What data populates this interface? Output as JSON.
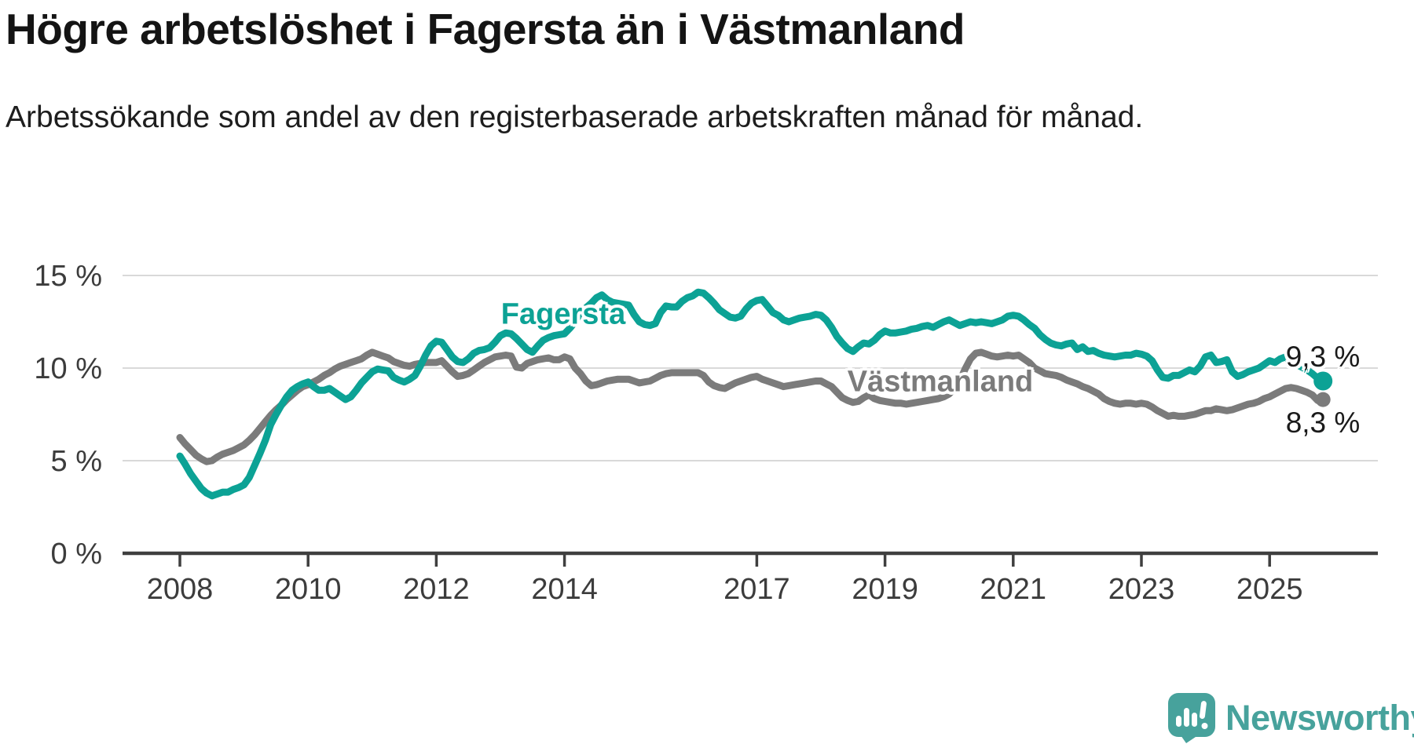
{
  "header": {
    "title": "Högre arbetslöshet i Fagersta än i Västmanland",
    "subtitle": "Arbetssökande som andel av den registerbaserade arbetskraften månad för månad."
  },
  "chart_data": {
    "type": "line",
    "title": "Högre arbetslöshet i Fagersta än i Västmanland",
    "xlabel": "",
    "ylabel": "",
    "grid": "horizontal",
    "legend": "inline-series-labels",
    "xlim": [
      2007.1,
      2026.6
    ],
    "ylim": [
      0,
      16.2
    ],
    "x_ticks": [
      2008,
      2010,
      2012,
      2014,
      2017,
      2019,
      2021,
      2023,
      2025
    ],
    "x_tick_labels": [
      "2008",
      "2010",
      "2012",
      "2014",
      "2017",
      "2019",
      "2021",
      "2023",
      "2025"
    ],
    "y_ticks": [
      0,
      5,
      10,
      15
    ],
    "y_tick_labels": [
      "0 %",
      "5 %",
      "10 %",
      "15 %"
    ],
    "series": [
      {
        "name": "Fagersta",
        "color": "#0ca295",
        "end_label": "9,3 %",
        "end_value": 9.3,
        "start": "2008-01",
        "frequency": "monthly",
        "values": [
          5.25,
          4.8,
          4.3,
          3.9,
          3.5,
          3.25,
          3.1,
          3.2,
          3.3,
          3.3,
          3.45,
          3.55,
          3.7,
          4.1,
          4.75,
          5.4,
          6.1,
          6.95,
          7.5,
          8.0,
          8.45,
          8.8,
          9.0,
          9.15,
          9.25,
          9.0,
          8.8,
          8.8,
          8.9,
          8.7,
          8.5,
          8.3,
          8.45,
          8.8,
          9.2,
          9.5,
          9.8,
          9.95,
          9.9,
          9.85,
          9.5,
          9.35,
          9.25,
          9.4,
          9.6,
          10.1,
          10.7,
          11.2,
          11.45,
          11.4,
          11.0,
          10.6,
          10.35,
          10.3,
          10.5,
          10.8,
          10.95,
          11.0,
          11.1,
          11.4,
          11.75,
          11.9,
          11.85,
          11.6,
          11.3,
          11.0,
          10.85,
          11.2,
          11.5,
          11.65,
          11.75,
          11.8,
          11.85,
          12.15,
          12.5,
          13.0,
          13.25,
          13.5,
          13.8,
          13.95,
          13.7,
          13.55,
          13.5,
          13.45,
          13.4,
          12.9,
          12.5,
          12.35,
          12.3,
          12.4,
          13.0,
          13.35,
          13.3,
          13.3,
          13.6,
          13.8,
          13.9,
          14.1,
          14.05,
          13.8,
          13.5,
          13.15,
          12.95,
          12.75,
          12.7,
          12.8,
          13.2,
          13.5,
          13.65,
          13.7,
          13.35,
          13.0,
          12.85,
          12.6,
          12.5,
          12.6,
          12.7,
          12.75,
          12.8,
          12.9,
          12.85,
          12.6,
          12.2,
          11.7,
          11.35,
          11.05,
          10.9,
          11.15,
          11.35,
          11.3,
          11.5,
          11.8,
          12.0,
          11.9,
          11.9,
          11.95,
          12.0,
          12.1,
          12.15,
          12.25,
          12.3,
          12.2,
          12.35,
          12.5,
          12.6,
          12.45,
          12.3,
          12.4,
          12.5,
          12.45,
          12.5,
          12.45,
          12.4,
          12.5,
          12.6,
          12.8,
          12.85,
          12.8,
          12.6,
          12.35,
          12.15,
          11.8,
          11.55,
          11.35,
          11.25,
          11.2,
          11.3,
          11.35,
          11.0,
          11.15,
          10.9,
          10.95,
          10.8,
          10.7,
          10.65,
          10.6,
          10.65,
          10.7,
          10.7,
          10.8,
          10.75,
          10.65,
          10.4,
          9.9,
          9.5,
          9.45,
          9.6,
          9.6,
          9.75,
          9.9,
          9.8,
          10.1,
          10.6,
          10.7,
          10.3,
          10.35,
          10.45,
          9.8,
          9.55,
          9.65,
          9.8,
          9.9,
          10.0,
          10.2,
          10.4,
          10.3,
          10.5,
          10.6,
          10.35,
          10.2,
          10.05,
          9.9,
          9.7,
          9.45,
          9.3
        ]
      },
      {
        "name": "Västmanland",
        "color": "#7b7b7b",
        "end_label": "8,3 %",
        "end_value": 8.3,
        "start": "2008-01",
        "frequency": "monthly",
        "values": [
          6.25,
          5.9,
          5.6,
          5.3,
          5.1,
          4.95,
          5.0,
          5.2,
          5.35,
          5.45,
          5.55,
          5.7,
          5.85,
          6.1,
          6.4,
          6.75,
          7.1,
          7.45,
          7.75,
          8.0,
          8.3,
          8.55,
          8.8,
          9.0,
          9.1,
          9.25,
          9.4,
          9.6,
          9.75,
          9.95,
          10.1,
          10.2,
          10.3,
          10.4,
          10.5,
          10.7,
          10.85,
          10.75,
          10.65,
          10.55,
          10.35,
          10.25,
          10.15,
          10.1,
          10.2,
          10.25,
          10.3,
          10.3,
          10.3,
          10.4,
          10.1,
          9.8,
          9.55,
          9.6,
          9.7,
          9.9,
          10.1,
          10.3,
          10.45,
          10.6,
          10.65,
          10.7,
          10.65,
          10.05,
          10.0,
          10.25,
          10.35,
          10.45,
          10.5,
          10.55,
          10.45,
          10.45,
          10.6,
          10.5,
          10.0,
          9.7,
          9.3,
          9.05,
          9.1,
          9.2,
          9.3,
          9.35,
          9.4,
          9.4,
          9.4,
          9.3,
          9.2,
          9.25,
          9.3,
          9.45,
          9.6,
          9.7,
          9.75,
          9.75,
          9.75,
          9.75,
          9.75,
          9.75,
          9.6,
          9.25,
          9.05,
          8.95,
          8.9,
          9.05,
          9.2,
          9.3,
          9.4,
          9.5,
          9.55,
          9.4,
          9.3,
          9.2,
          9.1,
          9.0,
          9.05,
          9.1,
          9.15,
          9.2,
          9.25,
          9.3,
          9.3,
          9.15,
          9.0,
          8.7,
          8.4,
          8.25,
          8.15,
          8.2,
          8.4,
          8.55,
          8.35,
          8.25,
          8.2,
          8.15,
          8.1,
          8.1,
          8.05,
          8.1,
          8.15,
          8.2,
          8.25,
          8.3,
          8.35,
          8.45,
          8.6,
          8.9,
          9.3,
          9.95,
          10.5,
          10.8,
          10.85,
          10.75,
          10.65,
          10.6,
          10.65,
          10.7,
          10.65,
          10.7,
          10.5,
          10.3,
          10.0,
          9.85,
          9.7,
          9.65,
          9.6,
          9.5,
          9.35,
          9.25,
          9.15,
          9.0,
          8.9,
          8.75,
          8.6,
          8.35,
          8.2,
          8.1,
          8.05,
          8.1,
          8.1,
          8.05,
          8.1,
          8.05,
          7.9,
          7.7,
          7.55,
          7.4,
          7.45,
          7.4,
          7.4,
          7.45,
          7.5,
          7.6,
          7.7,
          7.7,
          7.8,
          7.75,
          7.7,
          7.75,
          7.85,
          7.95,
          8.05,
          8.1,
          8.2,
          8.35,
          8.45,
          8.6,
          8.75,
          8.9,
          8.95,
          8.9,
          8.8,
          8.7,
          8.55,
          8.25,
          8.3
        ]
      }
    ]
  },
  "footer": {
    "brand": "Newsworthy",
    "logo_icon": "speech-bubble-bar-chart-exclamation",
    "brand_color": "#47a29c"
  },
  "palette": {
    "fagersta_line": "#0ca295",
    "vastmanland_line": "#7b7b7b",
    "gridline": "#d9d9d9",
    "axis": "#3f3f3f",
    "axis_text": "#3c3c3c",
    "title_text": "#141414",
    "subtitle_text": "#1e1e1e"
  }
}
